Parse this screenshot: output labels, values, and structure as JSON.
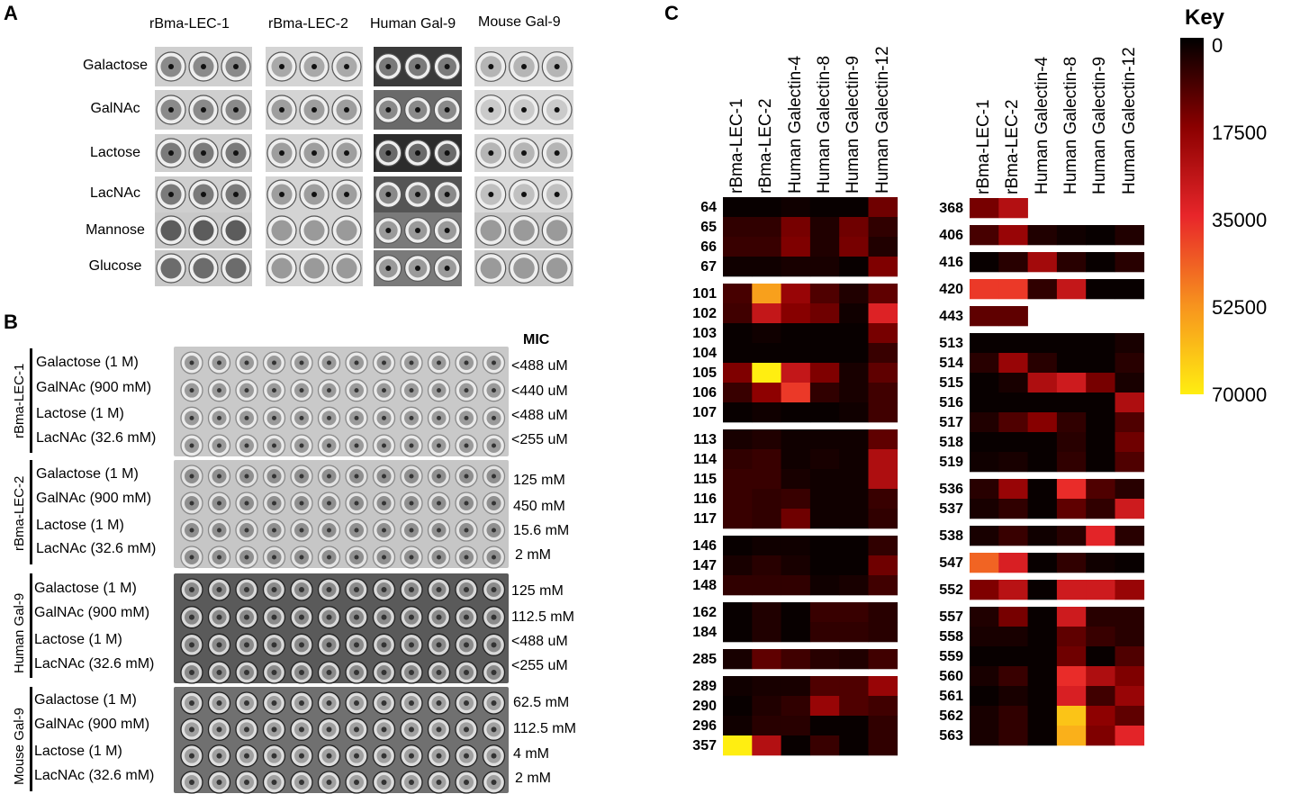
{
  "panels": {
    "a": "A",
    "b": "B",
    "c": "C"
  },
  "panelA": {
    "columns": [
      "rBma-LEC-1",
      "rBma-LEC-2",
      "Human Gal-9",
      "Mouse Gal-9"
    ],
    "rows": [
      "Galactose",
      "GalNAc",
      "Lactose",
      "LacNAc",
      "Mannose",
      "Glucose"
    ]
  },
  "panelB": {
    "mic_header": "MIC",
    "groups": [
      {
        "label": "rBma-LEC-1",
        "sugars": [
          "Galactose (1 M)",
          "GalNAc (900 mM)",
          "Lactose (1 M)",
          "LacNAc (32.6 mM)"
        ],
        "mic": [
          "<488 uM",
          "<440 uM",
          "<488 uM",
          "<255 uM"
        ]
      },
      {
        "label": "rBma-LEC-2",
        "sugars": [
          "Galactose (1 M)",
          "GalNAc (900 mM)",
          "Lactose (1 M)",
          "LacNAc (32.6 mM)"
        ],
        "mic": [
          "125 mM",
          "450 mM",
          "15.6 mM",
          "2 mM"
        ]
      },
      {
        "label": "Human Gal-9",
        "sugars": [
          "Galactose (1 M)",
          "GalNAc (900 mM)",
          "Lactose (1 M)",
          "LacNAc (32.6 mM)"
        ],
        "mic": [
          "125 mM",
          "112.5 mM",
          "<488 uM",
          "<255 uM"
        ]
      },
      {
        "label": "Mouse Gal-9",
        "sugars": [
          "Galactose (1 M)",
          "GalNAc (900 mM)",
          "Lactose (1 M)",
          "LacNAc (32.6 mM)"
        ],
        "mic": [
          "62.5 mM",
          "112.5 mM",
          "4 mM",
          "2 mM"
        ]
      }
    ]
  },
  "chart_data": {
    "type": "heatmap",
    "columns": [
      "rBma-LEC-1",
      "rBma-LEC-2",
      "Human Galectin-4",
      "Human Galectin-8",
      "Human Galectin-9",
      "Human Galectin-12"
    ],
    "key": {
      "title": "Key",
      "ticks": [
        0,
        17500,
        35000,
        52500,
        70000
      ],
      "colors": [
        "#000000",
        "#8b0000",
        "#e8262a",
        "#f7931e",
        "#ffee11"
      ]
    },
    "left": {
      "blocks": [
        {
          "rows": [
            "64",
            "65",
            "66",
            "67"
          ],
          "values": [
            [
              1000,
              1000,
              2000,
              1000,
              1000,
              14000
            ],
            [
              6000,
              6000,
              15000,
              4000,
              14000,
              6000
            ],
            [
              7000,
              7000,
              16000,
              4000,
              15000,
              4000
            ],
            [
              2000,
              2000,
              3000,
              3000,
              1000,
              16000
            ]
          ]
        },
        {
          "rows": [
            "101",
            "102",
            "103",
            "104",
            "105",
            "106",
            "107"
          ],
          "values": [
            [
              9000,
              55000,
              20000,
              10000,
              4000,
              12000
            ],
            [
              8000,
              28000,
              17000,
              14000,
              2000,
              33000
            ],
            [
              1000,
              2000,
              1000,
              1000,
              1000,
              15000
            ],
            [
              1000,
              1000,
              1000,
              1000,
              1000,
              7000
            ],
            [
              16000,
              70000,
              28000,
              16000,
              3000,
              12000
            ],
            [
              7000,
              18000,
              38000,
              6000,
              3000,
              8000
            ],
            [
              1000,
              2000,
              1000,
              1000,
              2000,
              8000
            ]
          ]
        },
        {
          "rows": [
            "113",
            "114",
            "115",
            "116",
            "117"
          ],
          "values": [
            [
              3000,
              4000,
              2000,
              2000,
              2000,
              12000
            ],
            [
              6000,
              7000,
              2000,
              3000,
              2000,
              24000
            ],
            [
              7000,
              7000,
              3000,
              2000,
              2000,
              24000
            ],
            [
              7000,
              6000,
              7000,
              2000,
              2000,
              7000
            ],
            [
              7000,
              6000,
              14000,
              2000,
              2000,
              6000
            ]
          ]
        },
        {
          "rows": [
            "146",
            "147",
            "148"
          ],
          "values": [
            [
              1000,
              2000,
              2000,
              1000,
              1000,
              6000
            ],
            [
              3000,
              5000,
              3000,
              1000,
              1000,
              14000
            ],
            [
              6000,
              6000,
              6000,
              2000,
              3000,
              8000
            ]
          ]
        },
        {
          "rows": [
            "162",
            "184"
          ],
          "values": [
            [
              1000,
              4000,
              1000,
              7000,
              7000,
              5000
            ],
            [
              1000,
              4000,
              1000,
              6000,
              6000,
              5000
            ]
          ]
        },
        {
          "rows": [
            "285"
          ],
          "values": [
            [
              3000,
              12000,
              8000,
              5000,
              4000,
              8000
            ]
          ]
        },
        {
          "rows": [
            "289",
            "290",
            "296",
            "357"
          ],
          "values": [
            [
              2000,
              3000,
              3000,
              10000,
              10000,
              20000
            ],
            [
              1000,
              4000,
              6000,
              20000,
              10000,
              8000
            ],
            [
              2000,
              5000,
              5000,
              1000,
              1000,
              6000
            ],
            [
              70000,
              25000,
              1000,
              7000,
              1000,
              6000
            ]
          ]
        }
      ]
    },
    "right": {
      "blocks": [
        {
          "rows": [
            "368"
          ],
          "values": [
            [
              15000,
              25000,
              null,
              null,
              null,
              null
            ]
          ]
        },
        {
          "rows": [
            "406"
          ],
          "values": [
            [
              9000,
              20000,
              4000,
              2000,
              1000,
              4000
            ]
          ]
        },
        {
          "rows": [
            "416"
          ],
          "values": [
            [
              1000,
              5000,
              22000,
              5000,
              1000,
              5000
            ]
          ]
        },
        {
          "rows": [
            "420"
          ],
          "values": [
            [
              38000,
              38000,
              6000,
              28000,
              1000,
              1000
            ]
          ]
        },
        {
          "rows": [
            "443"
          ],
          "values": [
            [
              12000,
              12000,
              null,
              null,
              null,
              null
            ]
          ]
        },
        {
          "rows": [
            "513",
            "514",
            "515",
            "516",
            "517",
            "518",
            "519"
          ],
          "values": [
            [
              1000,
              1000,
              1000,
              1000,
              1000,
              3000
            ],
            [
              5000,
              20000,
              5000,
              1000,
              1000,
              5000
            ],
            [
              1000,
              3000,
              24000,
              30000,
              15000,
              3000
            ],
            [
              1000,
              1000,
              1000,
              1000,
              1000,
              24000
            ],
            [
              4000,
              10000,
              17000,
              6000,
              1000,
              10000
            ],
            [
              1000,
              1000,
              1000,
              5000,
              1000,
              14000
            ],
            [
              2000,
              3000,
              1000,
              6000,
              1000,
              10000
            ]
          ]
        },
        {
          "rows": [
            "536",
            "537"
          ],
          "values": [
            [
              5000,
              20000,
              1000,
              36000,
              10000,
              5000
            ],
            [
              3000,
              6000,
              1000,
              12000,
              6000,
              30000
            ]
          ]
        },
        {
          "rows": [
            "538"
          ],
          "values": [
            [
              3000,
              7000,
              2000,
              5000,
              34000,
              5000
            ]
          ]
        },
        {
          "rows": [
            "547"
          ],
          "values": [
            [
              45000,
              32000,
              1000,
              6000,
              2000,
              1000
            ]
          ]
        },
        {
          "rows": [
            "552"
          ],
          "values": [
            [
              16000,
              26000,
              1000,
              30000,
              30000,
              20000
            ]
          ]
        },
        {
          "rows": [
            "557",
            "558",
            "559",
            "560",
            "561",
            "562",
            "563"
          ],
          "values": [
            [
              4000,
              15000,
              1000,
              30000,
              5000,
              5000
            ],
            [
              3000,
              3000,
              1000,
              12000,
              7000,
              5000
            ],
            [
              1000,
              1000,
              1000,
              14000,
              1000,
              10000
            ],
            [
              3000,
              7000,
              1000,
              36000,
              24000,
              16000
            ],
            [
              1000,
              3000,
              1000,
              32000,
              8000,
              20000
            ],
            [
              3000,
              6000,
              1000,
              62000,
              18000,
              12000
            ],
            [
              3000,
              6000,
              1000,
              58000,
              16000,
              34000
            ]
          ]
        }
      ]
    }
  }
}
